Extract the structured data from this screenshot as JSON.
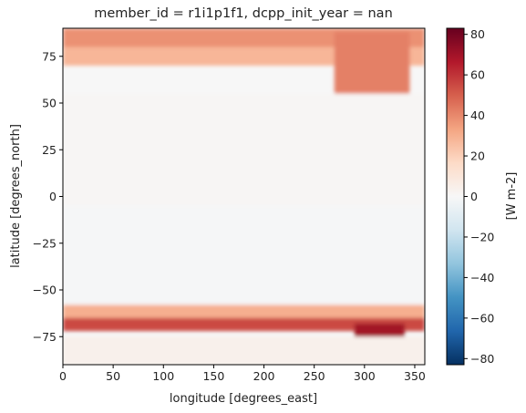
{
  "chart_data": {
    "type": "heatmap",
    "title": "member_id = r1i1p1f1, dcpp_init_year = nan",
    "xlabel": "longitude [degrees_east]",
    "ylabel": "latitude [degrees_north]",
    "xlim": [
      0,
      360
    ],
    "ylim": [
      -90,
      90
    ],
    "x_ticks": [
      0,
      50,
      100,
      150,
      200,
      250,
      300,
      350
    ],
    "y_ticks": [
      -75,
      -50,
      -25,
      0,
      25,
      50,
      75
    ],
    "grid": false,
    "colorbar": {
      "label": "[W m-2]",
      "colormap": "RdBu_r",
      "vmin": -83,
      "vmax": 83,
      "ticks": [
        -80,
        -60,
        -40,
        -20,
        0,
        20,
        40,
        60,
        80
      ],
      "colors": [
        "#053061",
        "#2166ac",
        "#4393c3",
        "#92c5de",
        "#d1e5f0",
        "#f7f7f7",
        "#fddbc7",
        "#f4a582",
        "#d6604d",
        "#b2182b",
        "#67001f"
      ]
    },
    "field_summary": [
      {
        "lon": [
          0,
          360
        ],
        "lat": [
          80,
          90
        ],
        "value": 38
      },
      {
        "lon": [
          0,
          360
        ],
        "lat": [
          70,
          80
        ],
        "value": 28
      },
      {
        "lon": [
          270,
          345
        ],
        "lat": [
          55,
          88
        ],
        "value": 42
      },
      {
        "lon": [
          0,
          360
        ],
        "lat": [
          -5,
          55
        ],
        "value": 1
      },
      {
        "lon": [
          0,
          360
        ],
        "lat": [
          -58,
          -5
        ],
        "value": -1
      },
      {
        "lon": [
          0,
          360
        ],
        "lat": [
          -70,
          -58
        ],
        "value": 30
      },
      {
        "lon": [
          0,
          360
        ],
        "lat": [
          -72,
          -65
        ],
        "value": 55
      },
      {
        "lon": [
          290,
          340
        ],
        "lat": [
          -82,
          -68
        ],
        "value": 70
      },
      {
        "lon": [
          0,
          360
        ],
        "lat": [
          -90,
          -75
        ],
        "value": 4
      }
    ]
  }
}
